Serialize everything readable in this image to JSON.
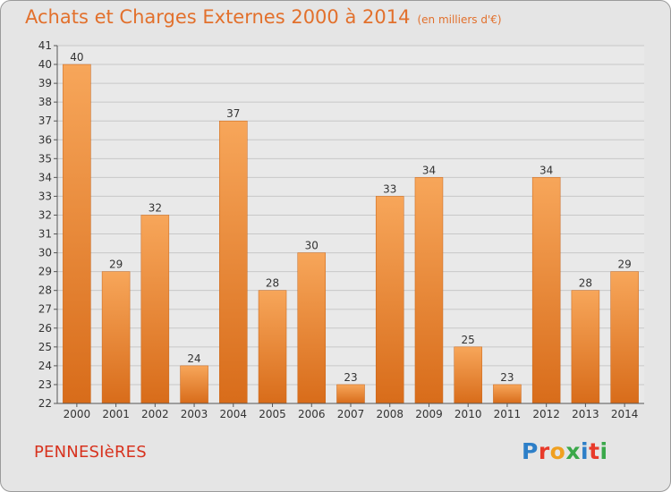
{
  "title": "Achats et Charges Externes 2000 à 2014",
  "subtitle": "(en milliers d'€)",
  "commune": "PENNESIèRES",
  "logo": {
    "text": "Proxiti",
    "letters": [
      {
        "ch": "P",
        "color": "#2d7fc8"
      },
      {
        "ch": "r",
        "color": "#e83a2a"
      },
      {
        "ch": "o",
        "color": "#f0a020"
      },
      {
        "ch": "x",
        "color": "#3aa84a"
      },
      {
        "ch": "i",
        "color": "#2d7fc8"
      },
      {
        "ch": "t",
        "color": "#e83a2a"
      },
      {
        "ch": "i",
        "color": "#3aa84a"
      }
    ]
  },
  "colors": {
    "bar_top": "#f7a65a",
    "bar_bottom": "#d86c1a",
    "title": "#e2702c",
    "commune": "#d7321e",
    "grid": "#c8c8c8"
  },
  "chart_data": {
    "type": "bar",
    "categories": [
      "2000",
      "2001",
      "2002",
      "2003",
      "2004",
      "2005",
      "2006",
      "2007",
      "2008",
      "2009",
      "2010",
      "2011",
      "2012",
      "2013",
      "2014"
    ],
    "values": [
      40,
      29,
      32,
      24,
      37,
      28,
      30,
      23,
      33,
      34,
      25,
      23,
      34,
      28,
      29
    ],
    "yticks": [
      22,
      23,
      24,
      25,
      26,
      27,
      28,
      29,
      30,
      31,
      32,
      33,
      34,
      35,
      36,
      37,
      38,
      39,
      40,
      41
    ],
    "ylim": [
      22,
      41
    ],
    "title": "Achats et Charges Externes 2000 à 2014",
    "xlabel": "",
    "ylabel": "",
    "grid": true,
    "data_labels": true
  }
}
